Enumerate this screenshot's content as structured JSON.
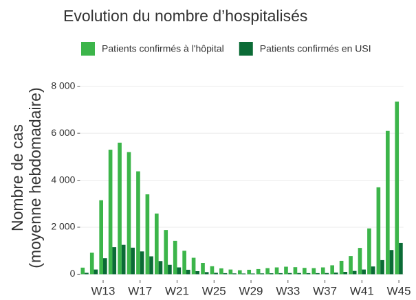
{
  "chart_data": {
    "type": "bar",
    "title": "Evolution du nombre d’hospitalisés",
    "y_label": [
      "Nombre de cas",
      "(moyenne hebdomadaire)"
    ],
    "categories": [
      null,
      null,
      "W13",
      null,
      null,
      null,
      "W17",
      null,
      null,
      null,
      "W21",
      null,
      null,
      null,
      "W25",
      null,
      null,
      null,
      "W29",
      null,
      null,
      null,
      "W33",
      null,
      null,
      null,
      "W37",
      null,
      null,
      null,
      "W41",
      null,
      null,
      null,
      "W45"
    ],
    "series": [
      {
        "name": "Patients confirmés à l'hôpital",
        "color": "#3cb54a",
        "values": [
          280,
          920,
          3150,
          5300,
          5600,
          5200,
          4380,
          3400,
          2580,
          1880,
          1420,
          1000,
          700,
          480,
          340,
          250,
          200,
          170,
          190,
          220,
          260,
          290,
          320,
          300,
          270,
          260,
          290,
          380,
          570,
          770,
          1120,
          1950,
          3700,
          6100,
          7350
        ]
      },
      {
        "name": "Patients confirmés en USI",
        "color": "#0b6b36",
        "values": [
          60,
          200,
          680,
          1150,
          1250,
          1130,
          970,
          760,
          560,
          400,
          290,
          190,
          130,
          90,
          60,
          45,
          35,
          30,
          30,
          35,
          40,
          45,
          50,
          50,
          45,
          45,
          50,
          70,
          100,
          140,
          200,
          330,
          600,
          1030,
          1330
        ]
      }
    ],
    "ylim": [
      -250,
      8400
    ],
    "yticks": [
      0,
      {
        "value": 2000,
        "label": "2 000"
      },
      {
        "value": 4000,
        "label": "4 000"
      },
      {
        "value": 6000,
        "label": "6 000"
      },
      {
        "value": 8000,
        "label": "8 000"
      }
    ],
    "grid": true,
    "legend": "top"
  }
}
